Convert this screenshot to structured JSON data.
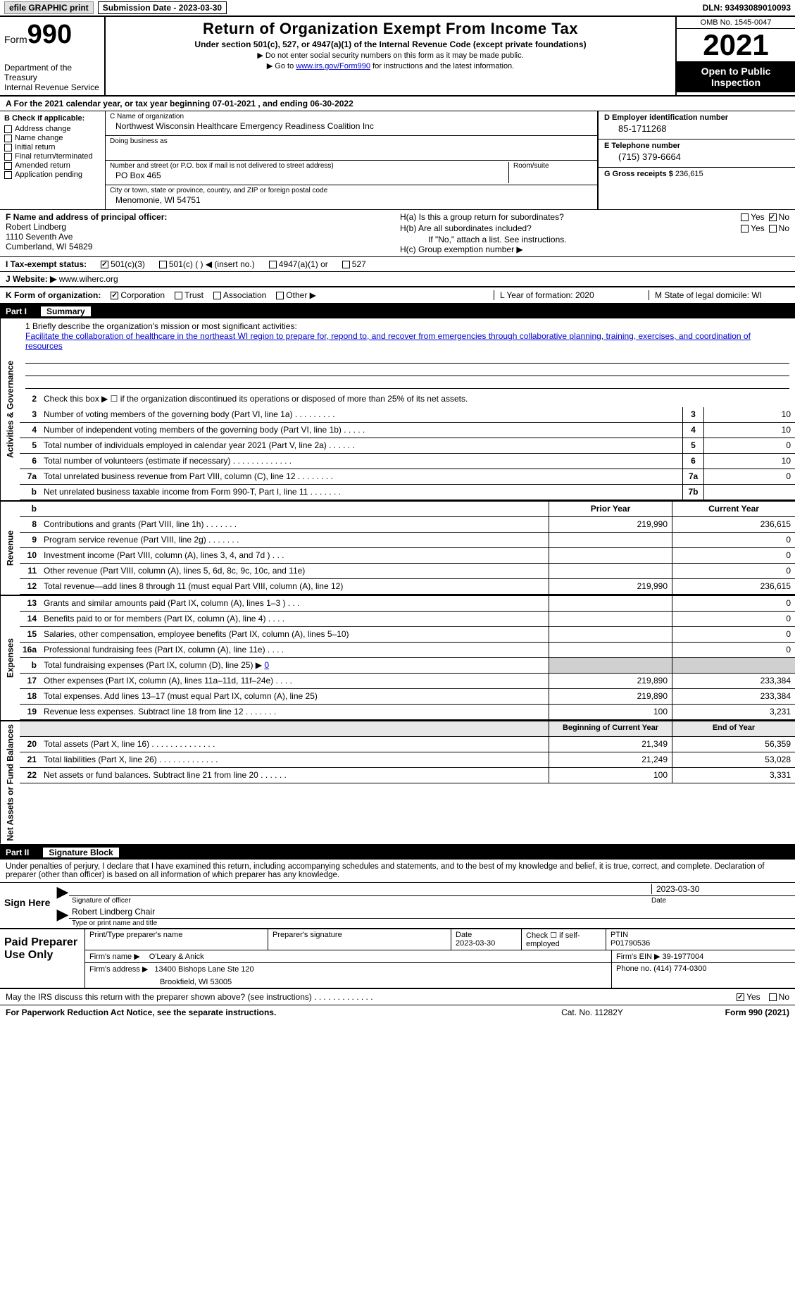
{
  "topbar": {
    "efile": "efile GRAPHIC print",
    "sub_date_label": "Submission Date - 2023-03-30",
    "dln": "DLN: 93493089010093"
  },
  "header": {
    "form_word": "Form",
    "form_num": "990",
    "dept": "Department of the Treasury",
    "irs": "Internal Revenue Service",
    "title": "Return of Organization Exempt From Income Tax",
    "sub": "Under section 501(c), 527, or 4947(a)(1) of the Internal Revenue Code (except private foundations)",
    "note1": "▶ Do not enter social security numbers on this form as it may be made public.",
    "note2_pre": "▶ Go to ",
    "note2_link": "www.irs.gov/Form990",
    "note2_post": " for instructions and the latest information.",
    "omb": "OMB No. 1545-0047",
    "year": "2021",
    "open": "Open to Public Inspection"
  },
  "lineA": "A For the 2021 calendar year, or tax year beginning 07-01-2021    , and ending 06-30-2022",
  "B": {
    "head": "B Check if applicable:",
    "opts": [
      "Address change",
      "Name change",
      "Initial return",
      "Final return/terminated",
      "Amended return",
      "Application pending"
    ]
  },
  "C": {
    "name_lbl": "C Name of organization",
    "name": "Northwest Wisconsin Healthcare Emergency Readiness Coalition Inc",
    "dba_lbl": "Doing business as",
    "addr_lbl": "Number and street (or P.O. box if mail is not delivered to street address)",
    "room_lbl": "Room/suite",
    "addr": "PO Box 465",
    "city_lbl": "City or town, state or province, country, and ZIP or foreign postal code",
    "city": "Menomonie, WI  54751"
  },
  "D": {
    "ein_lbl": "D Employer identification number",
    "ein": "85-1711268",
    "tel_lbl": "E Telephone number",
    "tel": "(715) 379-6664",
    "gross_lbl": "G Gross receipts $",
    "gross": "236,615"
  },
  "F": {
    "lbl": "F  Name and address of principal officer:",
    "name": "Robert Lindberg",
    "addr1": "1110 Seventh Ave",
    "addr2": "Cumberland, WI  54829"
  },
  "H": {
    "a": "H(a)  Is this a group return for subordinates?",
    "b": "H(b)  Are all subordinates included?",
    "b_note": "If \"No,\" attach a list. See instructions.",
    "c": "H(c)  Group exemption number ▶",
    "yes": "Yes",
    "no": "No"
  },
  "I": {
    "lbl": "I    Tax-exempt status:",
    "o1": "501(c)(3)",
    "o2": "501(c) (  ) ◀ (insert no.)",
    "o3": "4947(a)(1) or",
    "o4": "527"
  },
  "J": {
    "lbl": "J   Website: ▶",
    "val": "www.wiherc.org"
  },
  "K": {
    "lbl": "K Form of organization:",
    "o1": "Corporation",
    "o2": "Trust",
    "o3": "Association",
    "o4": "Other ▶",
    "L": "L Year of formation: 2020",
    "M": "M State of legal domicile: WI"
  },
  "part1": {
    "num": "Part I",
    "title": "Summary"
  },
  "mission": {
    "lbl": "1   Briefly describe the organization's mission or most significant activities:",
    "text": "Facilitate the collaboration of healthcare in the northeast WI region to prepare for, repond to, and recover from emergencies through collaborative planning, training, exercises, and coordination of resources"
  },
  "vlabels": {
    "ag": "Activities & Governance",
    "rev": "Revenue",
    "exp": "Expenses",
    "na": "Net Assets or Fund Balances"
  },
  "rows_ag": [
    {
      "n": "2",
      "t": "Check this box ▶ ☐  if the organization discontinued its operations or disposed of more than 25% of its net assets."
    },
    {
      "n": "3",
      "t": "Number of voting members of the governing body (Part VI, line 1a)   .    .    .    .    .    .    .    .    .",
      "bn": "3",
      "bv": "10"
    },
    {
      "n": "4",
      "t": "Number of independent voting members of the governing body (Part VI, line 1b)   .    .    .    .    .",
      "bn": "4",
      "bv": "10"
    },
    {
      "n": "5",
      "t": "Total number of individuals employed in calendar year 2021 (Part V, line 2a)   .    .    .    .    .    .",
      "bn": "5",
      "bv": "0"
    },
    {
      "n": "6",
      "t": "Total number of volunteers (estimate if necessary)    .    .    .    .    .    .    .    .    .    .    .    .    .",
      "bn": "6",
      "bv": "10"
    },
    {
      "n": "7a",
      "t": "Total unrelated business revenue from Part VIII, column (C), line 12    .    .    .    .    .    .    .    .",
      "bn": "7a",
      "bv": "0"
    },
    {
      "n": "b",
      "t": "Net unrelated business taxable income from Form 990-T, Part I, line 11   .    .    .    .    .    .    .",
      "bn": "7b",
      "bv": ""
    }
  ],
  "pycy_hdr": {
    "py": "Prior Year",
    "cy": "Current Year"
  },
  "rows_rev": [
    {
      "n": "8",
      "t": "Contributions and grants (Part VIII, line 1h)    .    .    .    .    .    .    .",
      "py": "219,990",
      "cy": "236,615"
    },
    {
      "n": "9",
      "t": "Program service revenue (Part VIII, line 2g)    .    .    .    .    .    .    .",
      "py": "",
      "cy": "0"
    },
    {
      "n": "10",
      "t": "Investment income (Part VIII, column (A), lines 3, 4, and 7d )    .    .    .",
      "py": "",
      "cy": "0"
    },
    {
      "n": "11",
      "t": "Other revenue (Part VIII, column (A), lines 5, 6d, 8c, 9c, 10c, and 11e)",
      "py": "",
      "cy": "0"
    },
    {
      "n": "12",
      "t": "Total revenue—add lines 8 through 11 (must equal Part VIII, column (A), line 12)",
      "py": "219,990",
      "cy": "236,615"
    }
  ],
  "rows_exp": [
    {
      "n": "13",
      "t": "Grants and similar amounts paid (Part IX, column (A), lines 1–3 )   .    .    .",
      "py": "",
      "cy": "0"
    },
    {
      "n": "14",
      "t": "Benefits paid to or for members (Part IX, column (A), line 4)   .    .    .    .",
      "py": "",
      "cy": "0"
    },
    {
      "n": "15",
      "t": "Salaries, other compensation, employee benefits (Part IX, column (A), lines 5–10)",
      "py": "",
      "cy": "0"
    },
    {
      "n": "16a",
      "t": "Professional fundraising fees (Part IX, column (A), line 11e)   .    .    .    .",
      "py": "",
      "cy": "0"
    },
    {
      "n": "b",
      "t": "Total fundraising expenses (Part IX, column (D), line 25) ▶ 0",
      "py": "GRAY",
      "cy": "GRAY"
    },
    {
      "n": "17",
      "t": "Other expenses (Part IX, column (A), lines 11a–11d, 11f–24e)   .    .    .    .",
      "py": "219,890",
      "cy": "233,384"
    },
    {
      "n": "18",
      "t": "Total expenses. Add lines 13–17 (must equal Part IX, column (A), line 25)",
      "py": "219,890",
      "cy": "233,384"
    },
    {
      "n": "19",
      "t": "Revenue less expenses. Subtract line 18 from line 12   .    .    .    .    .    .    .",
      "py": "100",
      "cy": "3,231"
    }
  ],
  "na_hdr": {
    "py": "Beginning of Current Year",
    "cy": "End of Year"
  },
  "rows_na": [
    {
      "n": "20",
      "t": "Total assets (Part X, line 16)   .    .    .    .    .    .    .    .    .    .    .    .    .    .",
      "py": "21,349",
      "cy": "56,359"
    },
    {
      "n": "21",
      "t": "Total liabilities (Part X, line 26)   .    .    .    .    .    .    .    .    .    .    .    .    .",
      "py": "21,249",
      "cy": "53,028"
    },
    {
      "n": "22",
      "t": "Net assets or fund balances. Subtract line 21 from line 20   .    .    .    .    .    .",
      "py": "100",
      "cy": "3,331"
    }
  ],
  "part2": {
    "num": "Part II",
    "title": "Signature Block"
  },
  "p2decl": "Under penalties of perjury, I declare that I have examined this return, including accompanying schedules and statements, and to the best of my knowledge and belief, it is true, correct, and complete. Declaration of preparer (other than officer) is based on all information of which preparer has any knowledge.",
  "sign": {
    "here": "Sign Here",
    "sig_lbl": "Signature of officer",
    "date": "2023-03-30",
    "date_lbl": "Date",
    "name": "Robert Lindberg  Chair",
    "name_lbl": "Type or print name and title"
  },
  "prep": {
    "left": "Paid Preparer Use Only",
    "r1_name_lbl": "Print/Type preparer's name",
    "r1_sig_lbl": "Preparer's signature",
    "r1_date_lbl": "Date",
    "r1_date": "2023-03-30",
    "r1_self": "Check ☐ if self-employed",
    "r1_ptin_lbl": "PTIN",
    "r1_ptin": "P01790536",
    "r2_firm_lbl": "Firm's name    ▶",
    "r2_firm": "O'Leary & Anick",
    "r2_ein_lbl": "Firm's EIN ▶",
    "r2_ein": "39-1977004",
    "r3_addr_lbl": "Firm's address ▶",
    "r3_addr1": "13400 Bishops Lane Ste 120",
    "r3_addr2": "Brookfield, WI  53005",
    "r3_phone_lbl": "Phone no.",
    "r3_phone": "(414) 774-0300"
  },
  "discuss": {
    "q": "May the IRS discuss this return with the preparer shown above? (see instructions)    .    .    .    .    .    .    .    .    .    .    .    .    .",
    "yes": "Yes",
    "no": "No"
  },
  "footer": {
    "pra": "For Paperwork Reduction Act Notice, see the separate instructions.",
    "cat": "Cat. No. 11282Y",
    "fno": "Form 990 (2021)"
  }
}
